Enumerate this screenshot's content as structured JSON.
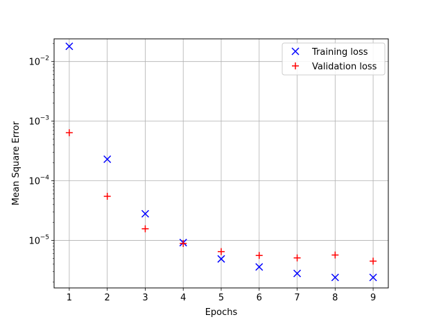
{
  "chart_data": {
    "type": "scatter",
    "xlabel": "Epochs",
    "ylabel": "Mean Square Error",
    "yscale": "log",
    "xlim": [
      0.6,
      9.4
    ],
    "ylim": [
      1.6e-06,
      0.024
    ],
    "grid": true,
    "legend_position": "top-right",
    "x_ticks": [
      1,
      2,
      3,
      4,
      5,
      6,
      7,
      8,
      9
    ],
    "y_ticks": [
      {
        "value": 1e-05,
        "base": "10",
        "exp": "−5"
      },
      {
        "value": 0.0001,
        "base": "10",
        "exp": "−4"
      },
      {
        "value": 0.001,
        "base": "10",
        "exp": "−3"
      },
      {
        "value": 0.01,
        "base": "10",
        "exp": "−2"
      }
    ],
    "series": [
      {
        "name": "Training loss",
        "marker": "x",
        "color": "#0000ff",
        "x": [
          1,
          2,
          3,
          4,
          5,
          6,
          7,
          8,
          9
        ],
        "y": [
          0.018,
          0.00023,
          2.8e-05,
          9.2e-06,
          4.9e-06,
          3.6e-06,
          2.8e-06,
          2.4e-06,
          2.4e-06
        ]
      },
      {
        "name": "Validation loss",
        "marker": "+",
        "color": "#ff0000",
        "x": [
          1,
          2,
          3,
          4,
          5,
          6,
          7,
          8,
          9
        ],
        "y": [
          0.00064,
          5.5e-05,
          1.57e-05,
          8.9e-06,
          6.5e-06,
          5.6e-06,
          5.1e-06,
          5.7e-06,
          4.5e-06
        ]
      }
    ]
  }
}
